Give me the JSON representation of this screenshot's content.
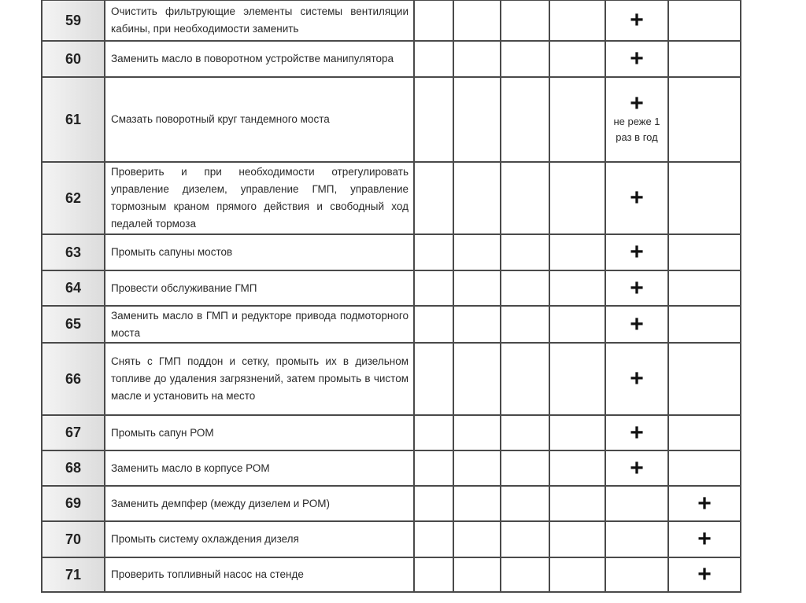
{
  "rows": [
    {
      "num": "59",
      "text": "Очистить фильтрующие элементы системы вентиляции кабины, при необходимости заменить",
      "col": 5,
      "mark": "+",
      "note": ""
    },
    {
      "num": "60",
      "text": "Заменить масло в поворотном устройстве манипулятора",
      "col": 5,
      "mark": "+",
      "note": ""
    },
    {
      "num": "61",
      "text": "Смазать поворотный круг тандемного моста",
      "col": 5,
      "mark": "+",
      "note": "не реже 1 раз в год"
    },
    {
      "num": "62",
      "text": "Проверить и при необходимости отрегулировать управление дизелем, управление ГМП, управление тормозным краном прямого действия и свободный ход педалей тормоза",
      "col": 5,
      "mark": "+",
      "note": ""
    },
    {
      "num": "63",
      "text": "Промыть сапуны мостов",
      "col": 5,
      "mark": "+",
      "note": ""
    },
    {
      "num": "64",
      "text": "Провести обслуживание ГМП",
      "col": 5,
      "mark": "+",
      "note": ""
    },
    {
      "num": "65",
      "text": "Заменить масло в ГМП и редукторе привода подмоторного моста",
      "col": 5,
      "mark": "+",
      "note": ""
    },
    {
      "num": "66",
      "text": "Снять с ГМП поддон и сетку, промыть их в дизельном топливе до удаления загрязнений, затем промыть в чистом масле и установить на место",
      "col": 5,
      "mark": "+",
      "note": ""
    },
    {
      "num": "67",
      "text": "Промыть сапун РОМ",
      "col": 5,
      "mark": "+",
      "note": ""
    },
    {
      "num": "68",
      "text": "Заменить масло в корпусе РОМ",
      "col": 5,
      "mark": "+",
      "note": ""
    },
    {
      "num": "69",
      "text": "Заменить демпфер (между дизелем и РОМ)",
      "col": 6,
      "mark": "+",
      "note": ""
    },
    {
      "num": "70",
      "text": "Промыть систему охлаждения дизеля",
      "col": 6,
      "mark": "+",
      "note": ""
    },
    {
      "num": "71",
      "text": "Проверить топливный насос на стенде",
      "col": 6,
      "mark": "+",
      "note": ""
    }
  ]
}
